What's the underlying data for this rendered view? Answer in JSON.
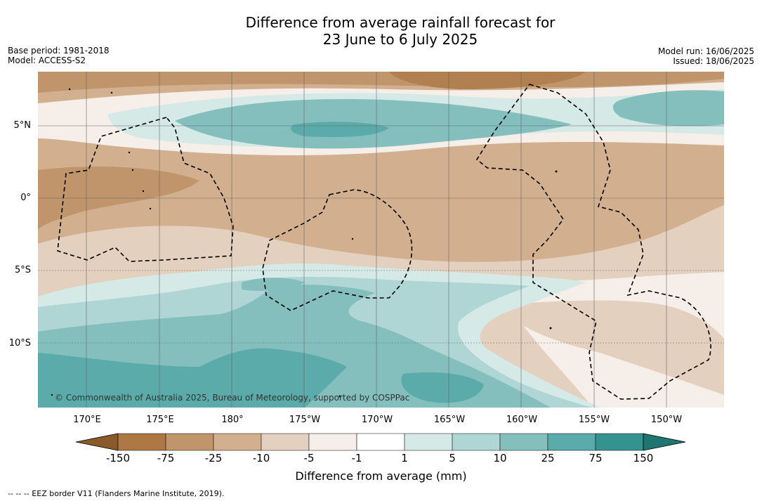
{
  "title": {
    "line1": "Difference from average rainfall forecast for",
    "line2": "23 June to 6 July 2025"
  },
  "meta_left": {
    "base_period": "Base period: 1981-2018",
    "model": "Model: ACCESS-S2"
  },
  "meta_right": {
    "model_run": "Model run: 16/06/2025",
    "issued": "Issued: 18/06/2025"
  },
  "map": {
    "lat_labels": [
      "5°N",
      "0°",
      "5°S",
      "10°S"
    ],
    "lon_labels": [
      "170°E",
      "175°E",
      "180°",
      "175°W",
      "170°W",
      "165°W",
      "160°W",
      "155°W",
      "150°W"
    ],
    "credit": "© Commonwealth of Australia 2025, Bureau of Meteorology, supported by COSPPac"
  },
  "colorbar": {
    "ticks": [
      "-150",
      "-75",
      "-25",
      "-10",
      "-5",
      "-1",
      "1",
      "5",
      "10",
      "25",
      "75",
      "150"
    ],
    "colors": [
      "#8b5a2b",
      "#ad7844",
      "#c0956b",
      "#d2b08f",
      "#e4d0bf",
      "#f5eee9",
      "#ffffff",
      "#d5e9e7",
      "#afd6d4",
      "#84bfbe",
      "#5aabaa",
      "#35938f",
      "#1f7670"
    ],
    "label": "Difference from average (mm)"
  },
  "footer": "-- -- -- EEZ border V11 (Flanders Marine Institute, 2019)."
}
